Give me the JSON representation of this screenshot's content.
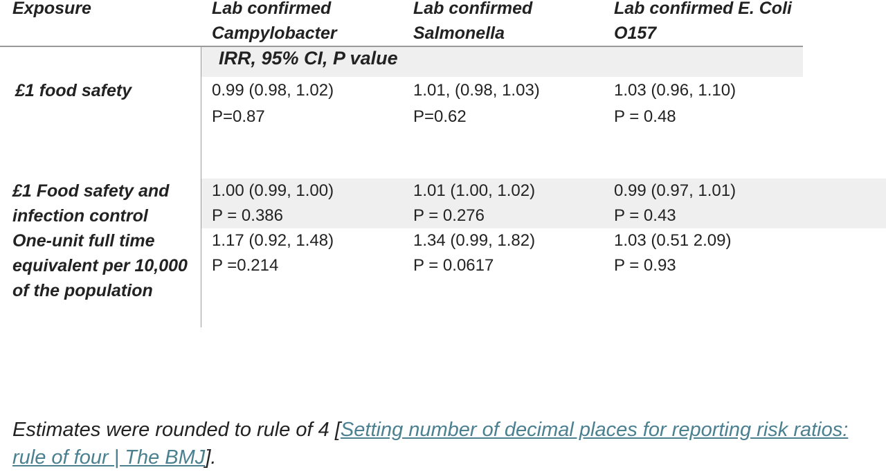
{
  "table": {
    "header": [
      "Exposure",
      "Lab confirmed Campylobacter",
      "Lab confirmed Salmonella",
      "Lab confirmed E. Coli O157"
    ],
    "subheader": "IRR, 95% CI, P value",
    "rows": [
      [
        "£1 food safety",
        [
          "0.99 (0.98, 1.02)",
          "P=0.87"
        ],
        [
          "1.01, (0.98, 1.03)",
          "P=0.62"
        ],
        [
          "1.03 (0.96, 1.10)",
          "P = 0.48"
        ]
      ],
      [
        "£1 Food safety and infection control",
        [
          "1.00 (0.99, 1.00)",
          "P = 0.386"
        ],
        [
          "1.01 (1.00, 1.02)",
          "P = 0.276"
        ],
        [
          "0.99 (0.97, 1.01)",
          "P = 0.43"
        ]
      ],
      [
        "One-unit full time equivalent per 10,000 of the population",
        [
          "1.17 (0.92, 1.48)",
          "P =0.214"
        ],
        [
          "1.34 (0.99, 1.82)",
          "P = 0.0617"
        ],
        [
          "1.03 (0.51 2.09)",
          "P = 0.93"
        ]
      ]
    ]
  },
  "footnote": {
    "text": "Estimates were rounded to rule of 4 [",
    "link": "Setting number of decimal places for reporting risk ratios: rule of four | The BMJ",
    "end": "]."
  }
}
